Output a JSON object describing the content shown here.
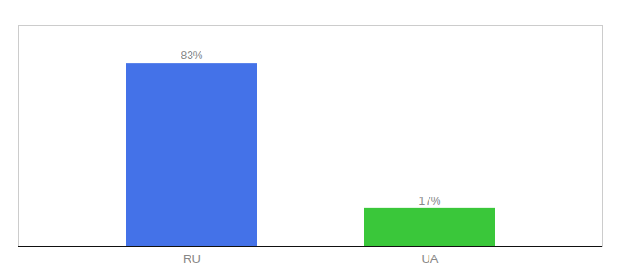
{
  "chart_data": {
    "type": "bar",
    "categories": [
      "RU",
      "UA"
    ],
    "values": [
      83,
      17
    ],
    "colors": [
      "#4472e8",
      "#3ac73a"
    ],
    "value_labels": [
      "83%",
      "17%"
    ],
    "data_labels": true,
    "ylim": [
      0,
      100
    ],
    "tick_labels": "x",
    "grid": false
  }
}
